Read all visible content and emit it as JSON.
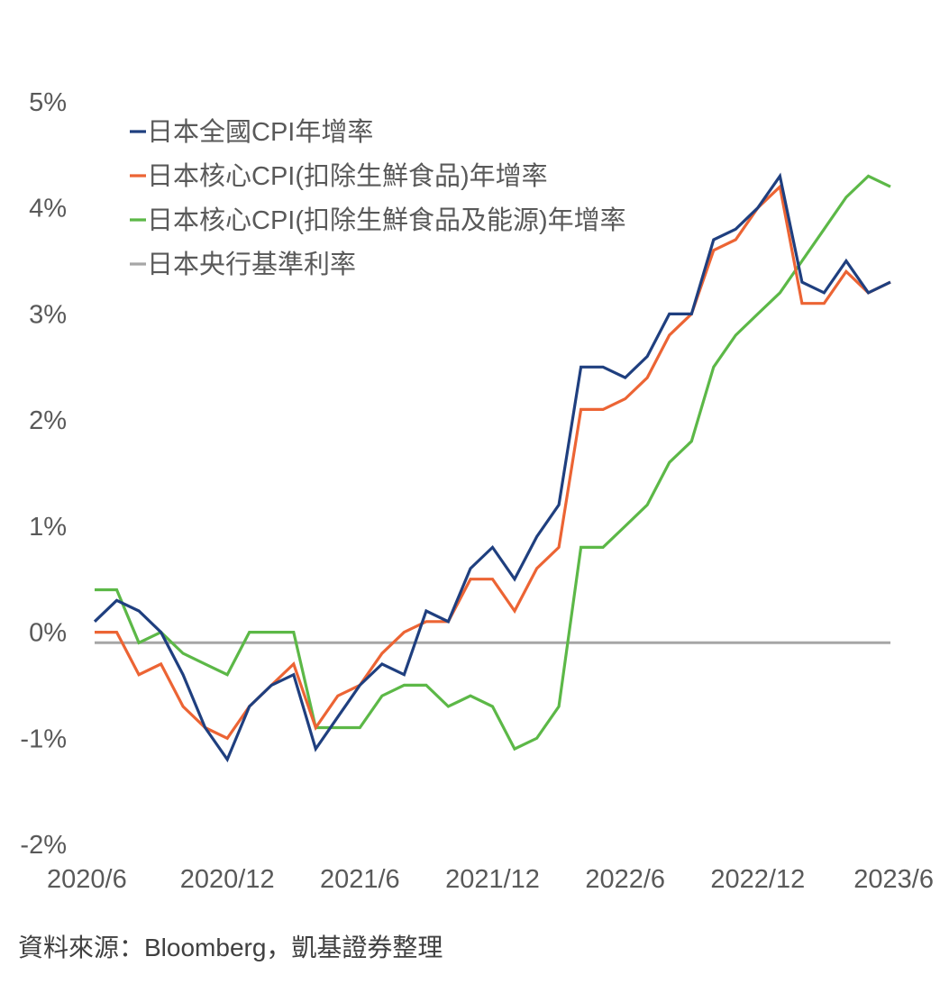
{
  "source_note": "資料來源：Bloomberg，凱基證券整理",
  "chart_data": {
    "type": "line",
    "title": "",
    "xlabel": "",
    "ylabel": "",
    "x_tick_labels": [
      "2020/6",
      "2020/12",
      "2021/6",
      "2021/12",
      "2022/6",
      "2022/12",
      "2023/6"
    ],
    "x_tick_month_index": [
      0,
      6,
      12,
      18,
      24,
      30,
      36
    ],
    "y_ticks": [
      5,
      4,
      3,
      2,
      1,
      0,
      -1,
      -2
    ],
    "y_tick_labels": [
      "5%",
      "4%",
      "3%",
      "2%",
      "1%",
      "0%",
      "-1%",
      "-2%"
    ],
    "ylim": [
      -2,
      5
    ],
    "grid": false,
    "legend_position": "top-left",
    "series": [
      {
        "name": "日本全國CPI年增率",
        "color": "#1f3f7f",
        "values": [
          0.1,
          0.3,
          0.2,
          0.0,
          -0.4,
          -0.9,
          -1.2,
          -0.7,
          -0.5,
          -0.4,
          -1.1,
          -0.8,
          -0.5,
          -0.3,
          -0.4,
          0.2,
          0.1,
          0.6,
          0.8,
          0.5,
          0.9,
          1.2,
          2.5,
          2.5,
          2.4,
          2.6,
          3.0,
          3.0,
          3.7,
          3.8,
          4.0,
          4.3,
          3.3,
          3.2,
          3.5,
          3.2,
          3.3
        ]
      },
      {
        "name": "日本核心CPI(扣除生鮮食品)年增率",
        "color": "#ec6434",
        "values": [
          0.0,
          0.0,
          -0.4,
          -0.3,
          -0.7,
          -0.9,
          -1.0,
          -0.7,
          -0.5,
          -0.3,
          -0.9,
          -0.6,
          -0.5,
          -0.2,
          0.0,
          0.1,
          0.1,
          0.5,
          0.5,
          0.2,
          0.6,
          0.8,
          2.1,
          2.1,
          2.2,
          2.4,
          2.8,
          3.0,
          3.6,
          3.7,
          4.0,
          4.2,
          3.1,
          3.1,
          3.4,
          3.2,
          3.3
        ]
      },
      {
        "name": "日本核心CPI(扣除生鮮食品及能源)年增率",
        "color": "#5cb847",
        "values": [
          0.4,
          0.4,
          -0.1,
          0.0,
          -0.2,
          -0.3,
          -0.4,
          0.0,
          0.0,
          0.0,
          -0.9,
          -0.9,
          -0.9,
          -0.6,
          -0.5,
          -0.5,
          -0.7,
          -0.6,
          -0.7,
          -1.1,
          -1.0,
          -0.7,
          0.8,
          0.8,
          1.0,
          1.2,
          1.6,
          1.8,
          2.5,
          2.8,
          3.0,
          3.2,
          3.5,
          3.8,
          4.1,
          4.3,
          4.2
        ]
      },
      {
        "name": "日本央行基準利率",
        "color": "#a6a6a6",
        "values": [
          -0.1,
          -0.1,
          -0.1,
          -0.1,
          -0.1,
          -0.1,
          -0.1,
          -0.1,
          -0.1,
          -0.1,
          -0.1,
          -0.1,
          -0.1,
          -0.1,
          -0.1,
          -0.1,
          -0.1,
          -0.1,
          -0.1,
          -0.1,
          -0.1,
          -0.1,
          -0.1,
          -0.1,
          -0.1,
          -0.1,
          -0.1,
          -0.1,
          -0.1,
          -0.1,
          -0.1,
          -0.1,
          -0.1,
          -0.1,
          -0.1,
          -0.1,
          -0.1
        ]
      }
    ]
  }
}
